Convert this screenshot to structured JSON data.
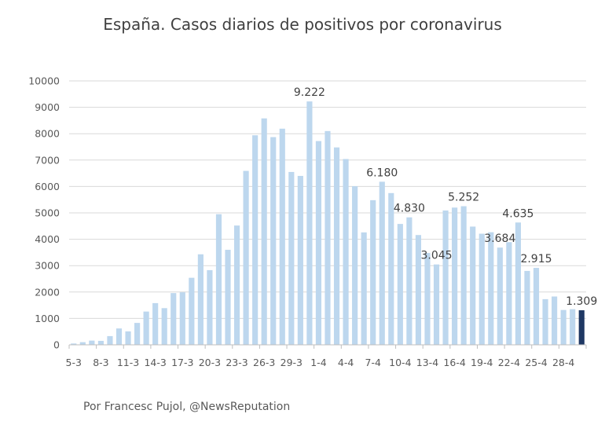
{
  "chart_data": {
    "type": "bar",
    "title": "España. Casos diarios de positivos por coronavirus",
    "footer": "Por Francesc Pujol, @NewsReputation",
    "xlabel": "",
    "ylabel": "",
    "ylim": [
      0,
      10000
    ],
    "y_ticks": [
      "0",
      "1000",
      "2000",
      "3000",
      "4000",
      "5000",
      "6000",
      "7000",
      "8000",
      "9000",
      "10000"
    ],
    "grid": true,
    "x_tick_labels": [
      "5-3",
      "8-3",
      "11-3",
      "14-3",
      "17-3",
      "20-3",
      "23-3",
      "26-3",
      "29-3",
      "1-4",
      "4-4",
      "7-4",
      "10-4",
      "13-4",
      "16-4",
      "19-4",
      "22-4",
      "25-4",
      "28-4"
    ],
    "categories": [
      "5-3",
      "6-3",
      "7-3",
      "8-3",
      "9-3",
      "10-3",
      "11-3",
      "12-3",
      "13-3",
      "14-3",
      "15-3",
      "16-3",
      "17-3",
      "18-3",
      "19-3",
      "20-3",
      "21-3",
      "22-3",
      "23-3",
      "24-3",
      "25-3",
      "26-3",
      "27-3",
      "28-3",
      "29-3",
      "30-3",
      "31-3",
      "1-4",
      "2-4",
      "3-4",
      "4-4",
      "5-4",
      "6-4",
      "7-4",
      "8-4",
      "9-4",
      "10-4",
      "11-4",
      "12-4",
      "13-4",
      "14-4",
      "15-4",
      "16-4",
      "17-4",
      "18-4",
      "19-4",
      "20-4",
      "21-4",
      "22-4",
      "23-4",
      "24-4",
      "25-4",
      "26-4",
      "27-4",
      "28-4",
      "29-4",
      "30-4"
    ],
    "values": [
      50,
      100,
      160,
      150,
      330,
      620,
      510,
      830,
      1260,
      1580,
      1390,
      1960,
      1990,
      2540,
      3430,
      2830,
      4950,
      3600,
      4520,
      6590,
      7940,
      8580,
      7870,
      8190,
      6550,
      6400,
      9222,
      7720,
      8100,
      7480,
      7040,
      6010,
      4260,
      5480,
      6180,
      5750,
      4580,
      4830,
      4160,
      3480,
      3045,
      5090,
      5200,
      5252,
      4480,
      4210,
      4266,
      3684,
      3890,
      4635,
      2800,
      2915,
      1730,
      1830,
      1320,
      1350,
      1309
    ],
    "data_labels": [
      {
        "index": 26,
        "text": "9.222"
      },
      {
        "index": 34,
        "text": "6.180"
      },
      {
        "index": 37,
        "text": "4.830"
      },
      {
        "index": 40,
        "text": "3.045"
      },
      {
        "index": 43,
        "text": "5.252"
      },
      {
        "index": 47,
        "text": "3.684"
      },
      {
        "index": 49,
        "text": "4.635"
      },
      {
        "index": 51,
        "text": "2.915"
      },
      {
        "index": 56,
        "text": "1.309"
      }
    ],
    "highlight_index": 56,
    "colors": {
      "bar": "#bdd7ee",
      "highlight": "#1f3864",
      "grid": "#d9d9d9",
      "axis": "#bfbfbf"
    }
  }
}
